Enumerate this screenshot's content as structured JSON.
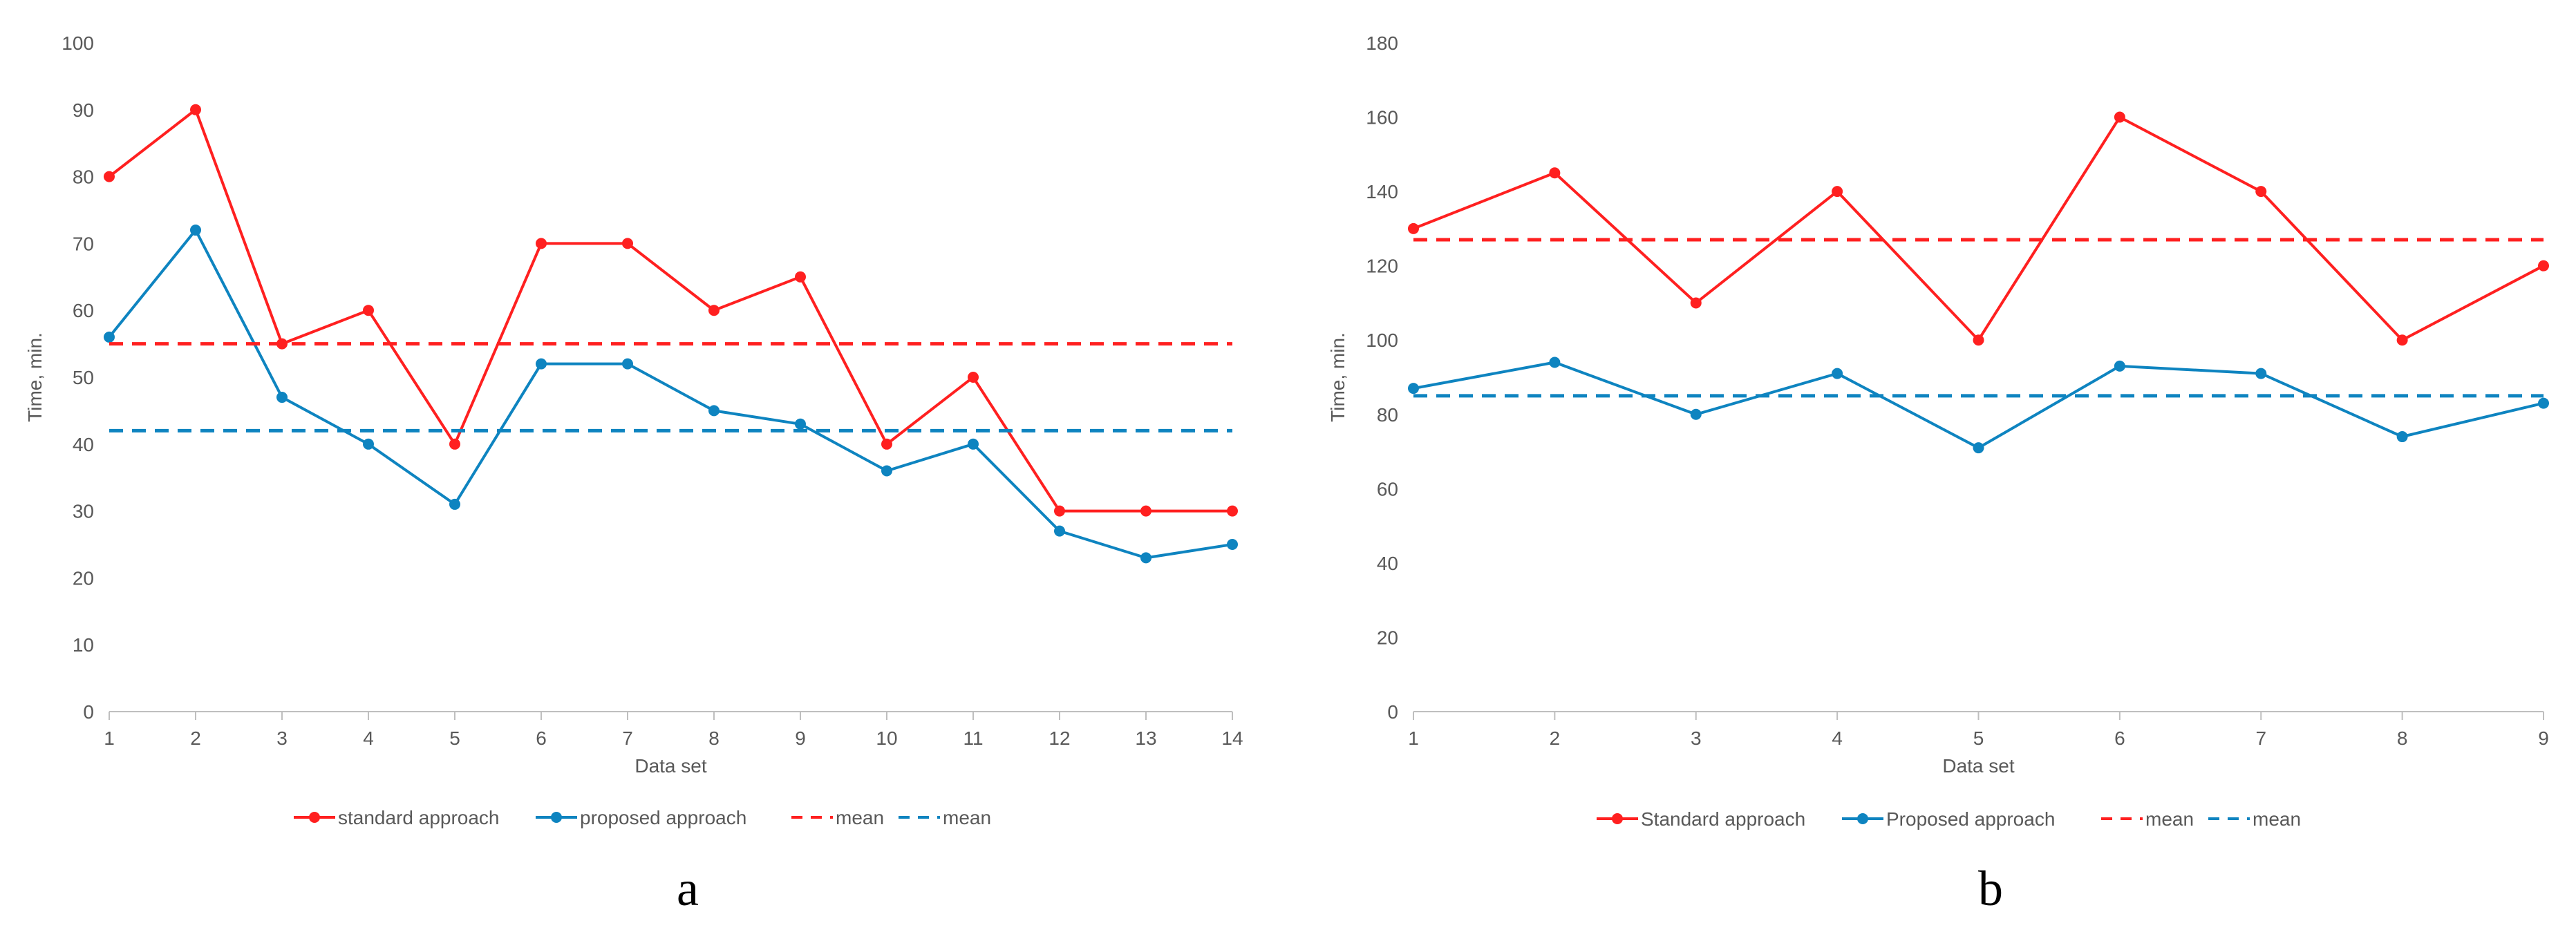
{
  "colors": {
    "standard": "#ff2020",
    "proposed": "#0e84c0",
    "axis": "#bfbfbf",
    "text": "#595959"
  },
  "chart_data": [
    {
      "type": "line",
      "panel_label": "a",
      "x": [
        1,
        2,
        3,
        4,
        5,
        6,
        7,
        8,
        9,
        10,
        11,
        12,
        13,
        14
      ],
      "series": [
        {
          "name": "standard approach",
          "values": [
            80,
            90,
            55,
            60,
            40,
            70,
            70,
            60,
            65,
            40,
            50,
            30,
            30,
            30
          ],
          "color": "#ff2020",
          "style": "solid",
          "markers": true
        },
        {
          "name": "proposed approach",
          "values": [
            56,
            72,
            47,
            40,
            31,
            52,
            52,
            45,
            43,
            36,
            40,
            27,
            23,
            25
          ],
          "color": "#0e84c0",
          "style": "solid",
          "markers": true
        },
        {
          "name": "mean",
          "values": [
            55,
            55,
            55,
            55,
            55,
            55,
            55,
            55,
            55,
            55,
            55,
            55,
            55,
            55
          ],
          "color": "#ff2020",
          "style": "dashed",
          "markers": false
        },
        {
          "name": "mean",
          "values": [
            42,
            42,
            42,
            42,
            42,
            42,
            42,
            42,
            42,
            42,
            42,
            42,
            42,
            42
          ],
          "color": "#0e84c0",
          "style": "dashed",
          "markers": false
        }
      ],
      "xlabel": "Data set",
      "ylabel": "Time, min.",
      "ylim": [
        0,
        100
      ],
      "yticks": [
        0,
        10,
        20,
        30,
        40,
        50,
        60,
        70,
        80,
        90,
        100
      ],
      "xticks": [
        "1",
        "2",
        "3",
        "4",
        "5",
        "6",
        "7",
        "8",
        "9",
        "10",
        "11",
        "12",
        "13",
        "14"
      ],
      "grid": false,
      "legend": "bottom"
    },
    {
      "type": "line",
      "panel_label": "b",
      "x": [
        1,
        2,
        3,
        4,
        5,
        6,
        7,
        8,
        9
      ],
      "series": [
        {
          "name": "Standard approach",
          "values": [
            130,
            145,
            110,
            140,
            100,
            160,
            140,
            100,
            120
          ],
          "color": "#ff2020",
          "style": "solid",
          "markers": true
        },
        {
          "name": "Proposed approach",
          "values": [
            87,
            94,
            80,
            91,
            71,
            93,
            91,
            74,
            83
          ],
          "color": "#0e84c0",
          "style": "solid",
          "markers": true
        },
        {
          "name": "mean",
          "values": [
            127,
            127,
            127,
            127,
            127,
            127,
            127,
            127,
            127
          ],
          "color": "#ff2020",
          "style": "dashed",
          "markers": false
        },
        {
          "name": "mean",
          "values": [
            85,
            85,
            85,
            85,
            85,
            85,
            85,
            85,
            85
          ],
          "color": "#0e84c0",
          "style": "dashed",
          "markers": false
        }
      ],
      "xlabel": "Data set",
      "ylabel": "Time, min.",
      "ylim": [
        0,
        180
      ],
      "yticks": [
        0,
        20,
        40,
        60,
        80,
        100,
        120,
        140,
        160,
        180
      ],
      "xticks": [
        "1",
        "2",
        "3",
        "4",
        "5",
        "6",
        "7",
        "8",
        "9"
      ],
      "grid": false,
      "legend": "bottom"
    }
  ]
}
